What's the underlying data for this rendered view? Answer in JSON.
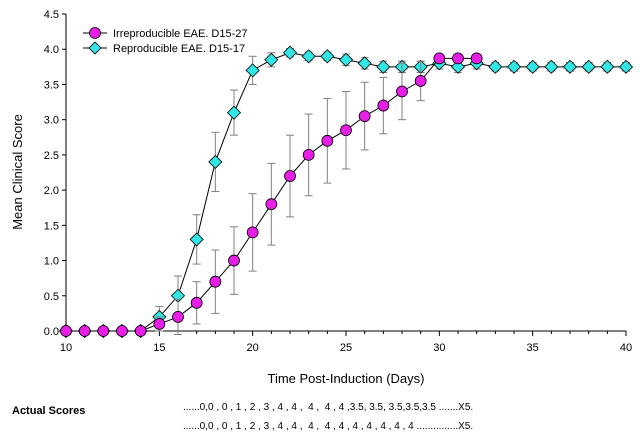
{
  "chart_data": {
    "type": "line",
    "title": "",
    "xlabel": "Time Post-Induction (Days)",
    "ylabel": "Mean Clinical Score",
    "xlim": [
      10,
      40
    ],
    "ylim": [
      0,
      4.5
    ],
    "xticks": [
      "10",
      "15",
      "20",
      "25",
      "30",
      "35",
      "40"
    ],
    "yticks": [
      "0.0",
      "0.5",
      "1.0",
      "1.5",
      "2.0",
      "2.5",
      "3.0",
      "3.5",
      "4.0",
      "4.5"
    ],
    "legend_position": "top-left",
    "series": [
      {
        "name": "Irreproducible EAE. D15-27",
        "marker": "circle",
        "color": "#e61ee6",
        "x": [
          10,
          11,
          12,
          13,
          14,
          15,
          16,
          17,
          18,
          19,
          20,
          21,
          22,
          23,
          24,
          25,
          26,
          27,
          28,
          29,
          30,
          31,
          32
        ],
        "y": [
          0,
          0,
          0,
          0,
          0,
          0.1,
          0.2,
          0.4,
          0.7,
          1.0,
          1.4,
          1.8,
          2.2,
          2.5,
          2.7,
          2.85,
          3.05,
          3.2,
          3.4,
          3.55,
          3.87,
          3.87,
          3.87
        ],
        "err": [
          0,
          0,
          0,
          0,
          0,
          0.1,
          0.25,
          0.3,
          0.45,
          0.48,
          0.55,
          0.58,
          0.58,
          0.58,
          0.6,
          0.55,
          0.48,
          0.4,
          0.4,
          0.28,
          0.05,
          0.05,
          0.05
        ]
      },
      {
        "name": "Reproducible EAE. D15-17",
        "marker": "diamond",
        "color": "#33e6e6",
        "x": [
          10,
          11,
          12,
          13,
          14,
          15,
          16,
          17,
          18,
          19,
          20,
          21,
          22,
          23,
          24,
          25,
          26,
          27,
          28,
          29,
          30,
          31,
          32,
          33,
          34,
          35,
          36,
          37,
          38,
          39,
          40
        ],
        "y": [
          0,
          0,
          0,
          0,
          0,
          0.2,
          0.5,
          1.3,
          2.4,
          3.1,
          3.7,
          3.85,
          3.95,
          3.9,
          3.9,
          3.85,
          3.8,
          3.75,
          3.75,
          3.75,
          3.8,
          3.75,
          3.8,
          3.75,
          3.75,
          3.75,
          3.75,
          3.75,
          3.75,
          3.75,
          3.75
        ],
        "err": [
          0,
          0,
          0,
          0,
          0,
          0.15,
          0.28,
          0.35,
          0.42,
          0.32,
          0.2,
          0.1,
          0.06,
          0.06,
          0.06,
          0.08,
          0.08,
          0.08,
          0.08,
          0.08,
          0.08,
          0.08,
          0.08,
          0.06,
          0.06,
          0.06,
          0.06,
          0.06,
          0.06,
          0.06,
          0.06
        ]
      }
    ]
  },
  "footer": {
    "label": "Actual Scores",
    "line1": "......0,0 , 0 , 1 , 2 , 3 , 4 , 4 ,  4 ,  4 , 4 ,3.5, 3.5, 3.5,3.5,3.5 .......X5.",
    "line2": "......0,0 , 0 , 1 , 2 , 3 , 4 , 4 ,  4 ,  4 , 4 , 4 , 4 , 4 , 4 , 4 ...............X5."
  }
}
